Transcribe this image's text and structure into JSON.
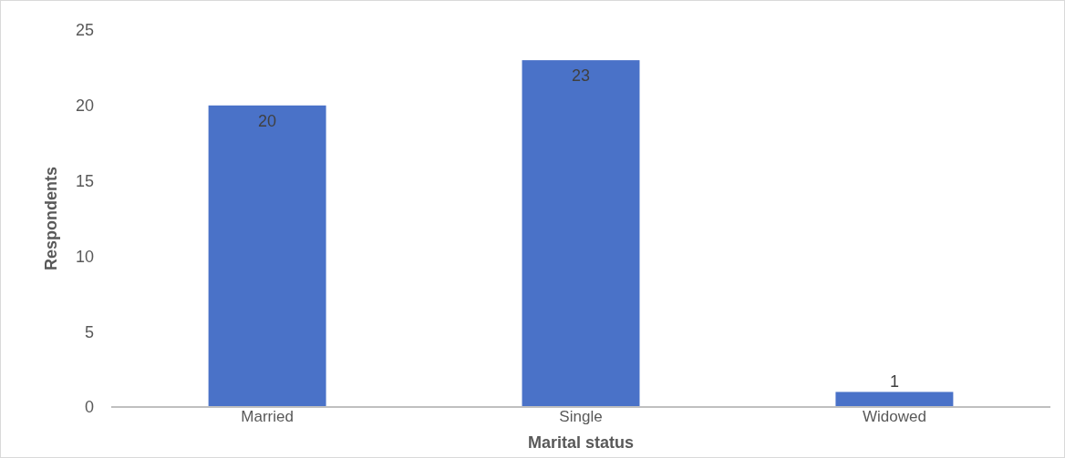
{
  "chart_data": {
    "type": "bar",
    "xlabel": "Marital status",
    "ylabel": "Respondents",
    "categories": [
      "Married",
      "Single",
      "Widowed"
    ],
    "values": [
      20,
      23,
      1
    ],
    "color": "#4a72c8",
    "ylim": [
      0,
      25
    ],
    "yticks": [
      0,
      5,
      10,
      15,
      20,
      25
    ],
    "data_labels": true
  }
}
